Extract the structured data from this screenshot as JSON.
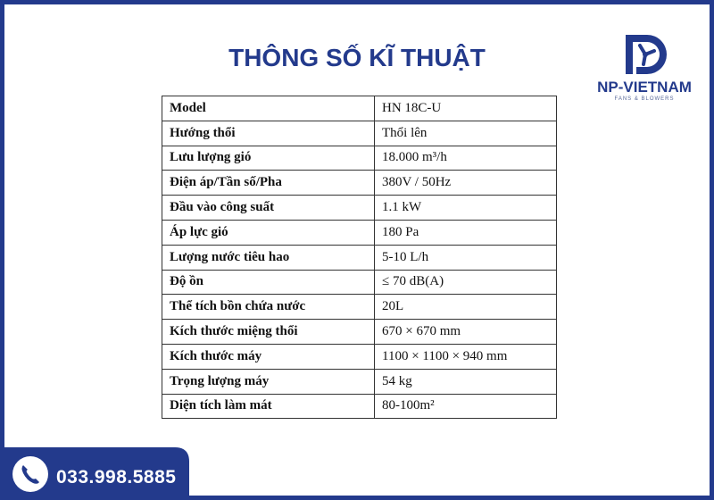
{
  "header": {
    "title": "THÔNG SỐ KĨ THUẬT"
  },
  "logo": {
    "name": "NP-VIETNAM",
    "tagline": "FANS & BLOWERS"
  },
  "table": {
    "rows": [
      [
        "Model",
        "HN 18C-U"
      ],
      [
        "Hướng thổi",
        "Thổi lên"
      ],
      [
        "Lưu lượng gió",
        "18.000 m³/h"
      ],
      [
        "Điện áp/Tần số/Pha",
        "380V / 50Hz"
      ],
      [
        "Đầu vào công suất",
        "1.1 kW"
      ],
      [
        "Áp lực gió",
        "180 Pa"
      ],
      [
        "Lượng nước tiêu hao",
        "5-10 L/h"
      ],
      [
        "Độ ồn",
        "≤ 70 dB(A)"
      ],
      [
        "Thể tích bồn chứa nước",
        "20L"
      ],
      [
        "Kích thước miệng thổi",
        "670 × 670 mm"
      ],
      [
        "Kích thước máy",
        "1100 × 1100 × 940 mm"
      ],
      [
        "Trọng lượng máy",
        "54 kg"
      ],
      [
        "Diện tích làm mát",
        "80-100m²"
      ]
    ]
  },
  "contact": {
    "phone": "033.998.5885"
  }
}
